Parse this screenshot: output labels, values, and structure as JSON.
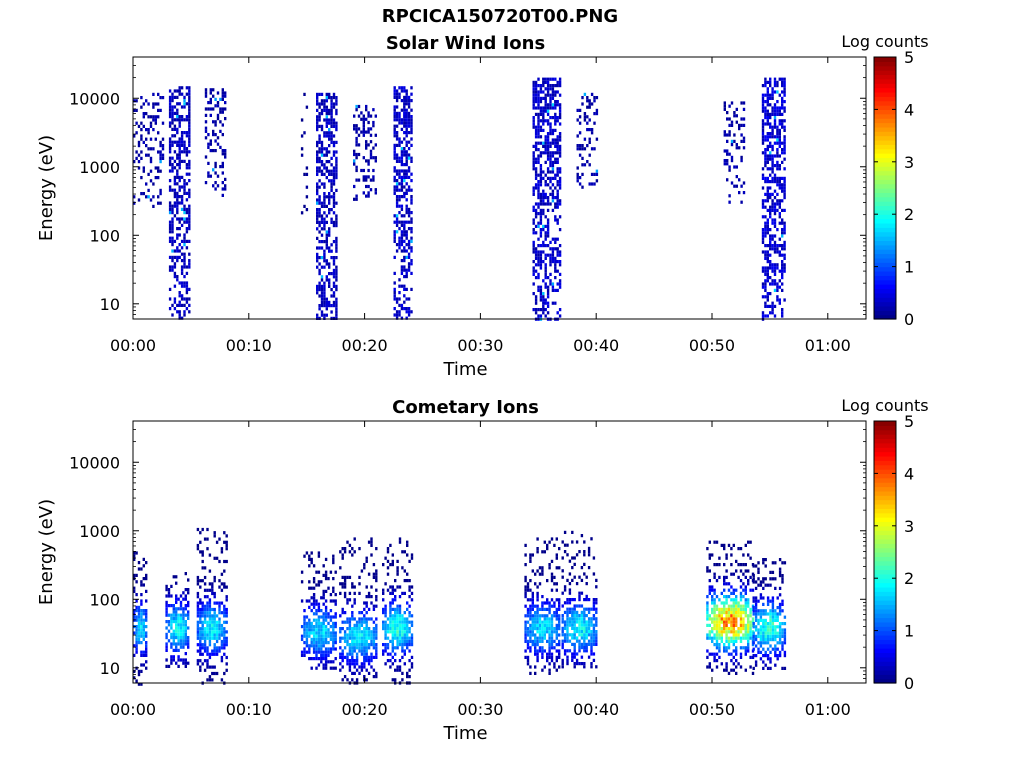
{
  "figure_title": "RPCICA150720T00.PNG",
  "colorbar": {
    "label": "Log counts",
    "ticks": [
      "0",
      "1",
      "2",
      "3",
      "4",
      "5"
    ],
    "range": [
      0,
      5
    ],
    "colormap": "jet"
  },
  "chart_data": [
    {
      "type": "heatmap",
      "title": "Solar Wind Ions",
      "xlabel": "Time",
      "ylabel": "Energy (eV)",
      "x_ticks": [
        "00:00",
        "00:10",
        "00:20",
        "00:30",
        "00:40",
        "00:50",
        "01:00"
      ],
      "xlim_minutes": [
        0,
        63.3
      ],
      "y_scale": "log",
      "y_ticks": [
        "10",
        "100",
        "1000",
        "10000"
      ],
      "ylim_eV": [
        6,
        40000
      ],
      "bursts": [
        {
          "t_start_min": 0.0,
          "t_end_min": 2.6,
          "e_min_eV": 250,
          "e_max_eV": 12000,
          "log_counts": 0.2,
          "density": 0.3
        },
        {
          "t_start_min": 3.1,
          "t_end_min": 4.8,
          "e_min_eV": 6,
          "e_max_eV": 15000,
          "log_counts": 0.3,
          "density": 0.65
        },
        {
          "t_start_min": 6.2,
          "t_end_min": 8.0,
          "e_min_eV": 350,
          "e_max_eV": 14000,
          "log_counts": 0.2,
          "density": 0.35
        },
        {
          "t_start_min": 14.5,
          "t_end_min": 15.0,
          "e_min_eV": 150,
          "e_max_eV": 12000,
          "log_counts": 0.1,
          "density": 0.15
        },
        {
          "t_start_min": 15.8,
          "t_end_min": 17.6,
          "e_min_eV": 6,
          "e_max_eV": 12000,
          "log_counts": 0.3,
          "density": 0.65
        },
        {
          "t_start_min": 19.0,
          "t_end_min": 21.0,
          "e_min_eV": 300,
          "e_max_eV": 8000,
          "log_counts": 0.2,
          "density": 0.35
        },
        {
          "t_start_min": 22.5,
          "t_end_min": 24.0,
          "e_min_eV": 6,
          "e_max_eV": 15000,
          "log_counts": 0.35,
          "density": 0.65
        },
        {
          "t_start_min": 34.5,
          "t_end_min": 36.8,
          "e_min_eV": 6,
          "e_max_eV": 20000,
          "log_counts": 0.35,
          "density": 0.65
        },
        {
          "t_start_min": 38.3,
          "t_end_min": 40.0,
          "e_min_eV": 500,
          "e_max_eV": 12000,
          "log_counts": 0.2,
          "density": 0.35
        },
        {
          "t_start_min": 51.0,
          "t_end_min": 52.8,
          "e_min_eV": 300,
          "e_max_eV": 9000,
          "log_counts": 0.2,
          "density": 0.35
        },
        {
          "t_start_min": 54.3,
          "t_end_min": 56.2,
          "e_min_eV": 6,
          "e_max_eV": 20000,
          "log_counts": 0.4,
          "density": 0.65
        }
      ]
    },
    {
      "type": "heatmap",
      "title": "Cometary Ions",
      "xlabel": "Time",
      "ylabel": "Energy (eV)",
      "x_ticks": [
        "00:00",
        "00:10",
        "00:20",
        "00:30",
        "00:40",
        "00:50",
        "01:00"
      ],
      "xlim_minutes": [
        0,
        63.3
      ],
      "y_scale": "log",
      "y_ticks": [
        "10",
        "100",
        "1000",
        "10000"
      ],
      "ylim_eV": [
        6,
        40000
      ],
      "bursts": [
        {
          "t_start_min": 0.0,
          "t_end_min": 1.2,
          "e_min_eV": 6,
          "e_max_eV": 500,
          "peak_eV": 40,
          "peak_log_counts": 2.0
        },
        {
          "t_start_min": 2.8,
          "t_end_min": 4.8,
          "e_min_eV": 10,
          "e_max_eV": 250,
          "peak_eV": 40,
          "peak_log_counts": 2.2
        },
        {
          "t_start_min": 5.5,
          "t_end_min": 8.0,
          "e_min_eV": 6,
          "e_max_eV": 1100,
          "peak_eV": 40,
          "peak_log_counts": 2.1
        },
        {
          "t_start_min": 14.5,
          "t_end_min": 17.5,
          "e_min_eV": 10,
          "e_max_eV": 500,
          "peak_eV": 35,
          "peak_log_counts": 2.0
        },
        {
          "t_start_min": 17.8,
          "t_end_min": 21.0,
          "e_min_eV": 6,
          "e_max_eV": 800,
          "peak_eV": 30,
          "peak_log_counts": 2.1
        },
        {
          "t_start_min": 21.5,
          "t_end_min": 24.0,
          "e_min_eV": 6,
          "e_max_eV": 800,
          "peak_eV": 40,
          "peak_log_counts": 2.4
        },
        {
          "t_start_min": 33.8,
          "t_end_min": 36.8,
          "e_min_eV": 8,
          "e_max_eV": 800,
          "peak_eV": 40,
          "peak_log_counts": 2.0
        },
        {
          "t_start_min": 37.0,
          "t_end_min": 40.0,
          "e_min_eV": 10,
          "e_max_eV": 1000,
          "peak_eV": 40,
          "peak_log_counts": 2.2
        },
        {
          "t_start_min": 49.5,
          "t_end_min": 53.5,
          "e_min_eV": 8,
          "e_max_eV": 800,
          "peak_eV": 50,
          "peak_log_counts": 4.3
        },
        {
          "t_start_min": 53.5,
          "t_end_min": 56.2,
          "e_min_eV": 10,
          "e_max_eV": 400,
          "peak_eV": 40,
          "peak_log_counts": 2.5
        }
      ]
    }
  ]
}
